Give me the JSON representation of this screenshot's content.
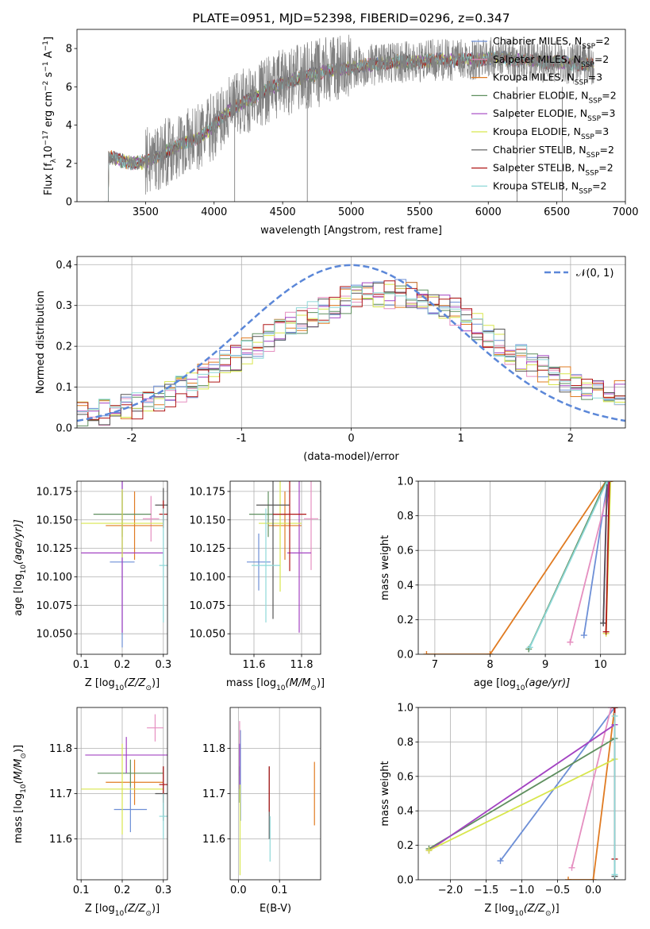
{
  "chart_data": [
    {
      "id": "spectrum",
      "type": "line",
      "title": "PLATE=0951, MJD=52398, FIBERID=0296, z=0.347",
      "xlabel": "wavelength [Angstrom, rest frame]",
      "ylabel_parts": [
        "Flux [f",
        "λ",
        "10",
        "−17",
        " erg cm",
        "−2",
        " s",
        "−1",
        " A",
        "−1",
        "]"
      ],
      "xlim": [
        3000,
        7000
      ],
      "ylim": [
        0,
        9
      ],
      "xticks": [
        3500,
        4000,
        4500,
        5000,
        5500,
        6000,
        6500,
        7000
      ],
      "yticks": [
        0,
        2,
        4,
        6,
        8
      ],
      "grid": false,
      "legend_position": "top-right",
      "continuum": {
        "x": [
          3200,
          3300,
          3400,
          3500,
          3600,
          3700,
          3800,
          3900,
          4000,
          4100,
          4200,
          4300,
          4400,
          4500,
          4600,
          4700,
          4800,
          4900,
          5000,
          5100,
          5200,
          5300,
          5400,
          5500,
          5600,
          5700,
          5800,
          5900,
          6000,
          6100,
          6200,
          6300,
          6400,
          6500,
          6600,
          6700,
          6770
        ],
        "y": [
          2.4,
          2.2,
          2.0,
          2.1,
          2.4,
          2.8,
          3.1,
          3.4,
          4.0,
          4.7,
          5.1,
          5.5,
          5.9,
          6.2,
          6.4,
          6.6,
          6.8,
          6.9,
          7.0,
          7.1,
          7.2,
          7.3,
          7.3,
          7.3,
          7.4,
          7.4,
          7.4,
          7.4,
          7.5,
          7.5,
          7.4,
          7.4,
          7.3,
          7.3,
          7.2,
          7.2,
          7.2
        ]
      },
      "series": [
        {
          "name": "Chabrier MILES, N",
          "sub": "SSP",
          "suffix": "=2",
          "color": "#6d8fd6"
        },
        {
          "name": "Salpeter MILES, N",
          "sub": "SSP",
          "suffix": "=2",
          "color": "#e58fc0"
        },
        {
          "name": "Kroupa MILES, N",
          "sub": "SSP",
          "suffix": "=3",
          "color": "#e07b22"
        },
        {
          "name": "Chabrier ELODIE, N",
          "sub": "SSP",
          "suffix": "=2",
          "color": "#5f8f5f"
        },
        {
          "name": "Salpeter ELODIE, N",
          "sub": "SSP",
          "suffix": "=3",
          "color": "#a343c2"
        },
        {
          "name": "Kroupa ELODIE, N",
          "sub": "SSP",
          "suffix": "=3",
          "color": "#d8e64d"
        },
        {
          "name": "Chabrier STELIB, N",
          "sub": "SSP",
          "suffix": "=2",
          "color": "#555555"
        },
        {
          "name": "Salpeter STELIB, N",
          "sub": "SSP",
          "suffix": "=2",
          "color": "#b01717"
        },
        {
          "name": "Kroupa STELIB, N",
          "sub": "SSP",
          "suffix": "=2",
          "color": "#8ed8d8"
        }
      ],
      "data_color": "#808080"
    },
    {
      "id": "residuals",
      "type": "line",
      "xlabel": "(data-model)/error",
      "ylabel": "Normed distribution",
      "xlim": [
        -2.5,
        2.5
      ],
      "ylim": [
        0,
        0.42
      ],
      "xticks": [
        -2,
        -1,
        0,
        1,
        2
      ],
      "yticks": [
        0.0,
        0.1,
        0.2,
        0.3,
        0.4
      ],
      "ytick_labels": [
        "0.0",
        "0.1",
        "0.2",
        "0.3",
        "0.4"
      ],
      "grid": true,
      "legend_position": "top-right",
      "gaussian_label": "𝒩(0, 1)",
      "gaussian_color": "#5b87d8",
      "hist_envelope": {
        "x": [
          -2.5,
          -2.0,
          -1.5,
          -1.0,
          -0.5,
          0.0,
          0.5,
          1.0,
          1.5,
          2.0,
          2.5
        ],
        "y": [
          0.03,
          0.05,
          0.1,
          0.18,
          0.26,
          0.32,
          0.33,
          0.28,
          0.18,
          0.11,
          0.08
        ]
      }
    },
    {
      "id": "age-vs-Z",
      "type": "scatter",
      "xlabel_parts": [
        "Z [log",
        "10",
        "(Z/Z",
        "⊙",
        ")]"
      ],
      "ylabel_parts": [
        "age  [log",
        "10",
        "(age/yr)]"
      ],
      "xlim": [
        0.09,
        0.31
      ],
      "ylim": [
        10.032,
        10.184
      ],
      "xticks": [
        0.1,
        0.2,
        0.3
      ],
      "xtick_labels": [
        "0.1",
        "0.2",
        "0.3"
      ],
      "yticks": [
        10.05,
        10.075,
        10.1,
        10.125,
        10.15,
        10.175
      ],
      "ytick_labels": [
        "10.050",
        "10.075",
        "10.100",
        "10.125",
        "10.150",
        "10.175"
      ],
      "grid": true,
      "points": [
        {
          "x": 0.2,
          "y": 10.113,
          "xerr": 0.03,
          "yerr": 0.075,
          "color": "#6d8fd6"
        },
        {
          "x": 0.27,
          "y": 10.151,
          "xerr": 0.02,
          "yerr": 0.02,
          "color": "#e58fc0"
        },
        {
          "x": 0.23,
          "y": 10.145,
          "xerr": 0.07,
          "yerr": 0.03,
          "color": "#e07b22"
        },
        {
          "x": 0.2,
          "y": 10.155,
          "xerr": 0.07,
          "yerr": 0.02,
          "color": "#5f8f5f"
        },
        {
          "x": 0.2,
          "y": 10.121,
          "xerr": 0.1,
          "yerr": 0.07,
          "color": "#a343c2"
        },
        {
          "x": 0.2,
          "y": 10.147,
          "xerr": 0.1,
          "yerr": 0.03,
          "color": "#d8e64d"
        },
        {
          "x": 0.3,
          "y": 10.163,
          "xerr": 0.02,
          "yerr": 0.015,
          "color": "#555555"
        },
        {
          "x": 0.3,
          "y": 10.155,
          "xerr": 0.01,
          "yerr": 0.012,
          "color": "#b01717"
        },
        {
          "x": 0.3,
          "y": 10.11,
          "xerr": 0.01,
          "yerr": 0.05,
          "color": "#8ed8d8"
        }
      ]
    },
    {
      "id": "age-vs-mass",
      "type": "scatter",
      "xlabel_parts": [
        "mass [log",
        "10",
        "(M/M",
        "⊙",
        ")]"
      ],
      "xlim": [
        11.5,
        11.88
      ],
      "ylim": [
        10.032,
        10.184
      ],
      "xticks": [
        11.6,
        11.8
      ],
      "xtick_labels": [
        "11.6",
        "11.8"
      ],
      "yticks": [
        10.05,
        10.075,
        10.1,
        10.125,
        10.15,
        10.175
      ],
      "ytick_labels": [
        "10.050",
        "10.075",
        "10.100",
        "10.125",
        "10.150",
        "10.175"
      ],
      "grid": true,
      "points": [
        {
          "x": 11.62,
          "y": 10.113,
          "xerr": 0.05,
          "yerr": 0.025,
          "color": "#6d8fd6"
        },
        {
          "x": 11.84,
          "y": 10.151,
          "xerr": 0.03,
          "yerr": 0.045,
          "color": "#e58fc0"
        },
        {
          "x": 11.73,
          "y": 10.145,
          "xerr": 0.07,
          "yerr": 0.03,
          "color": "#e07b22"
        },
        {
          "x": 11.66,
          "y": 10.155,
          "xerr": 0.08,
          "yerr": 0.02,
          "color": "#5f8f5f"
        },
        {
          "x": 11.79,
          "y": 10.121,
          "xerr": 0.05,
          "yerr": 0.07,
          "color": "#a343c2"
        },
        {
          "x": 11.71,
          "y": 10.147,
          "xerr": 0.09,
          "yerr": 0.06,
          "color": "#d8e64d"
        },
        {
          "x": 11.68,
          "y": 10.163,
          "xerr": 0.07,
          "yerr": 0.1,
          "color": "#555555"
        },
        {
          "x": 11.75,
          "y": 10.155,
          "xerr": 0.07,
          "yerr": 0.05,
          "color": "#b01717"
        },
        {
          "x": 11.65,
          "y": 10.11,
          "xerr": 0.06,
          "yerr": 0.05,
          "color": "#8ed8d8"
        }
      ]
    },
    {
      "id": "cumulative-age",
      "type": "line",
      "xlabel_parts": [
        "age  [log",
        "10",
        "(age/yr)]"
      ],
      "ylabel": "mass weight",
      "xlim": [
        6.7,
        10.45
      ],
      "ylim": [
        0,
        1
      ],
      "xticks": [
        7,
        8,
        9,
        10
      ],
      "yticks": [
        0,
        0.2,
        0.4,
        0.6,
        0.8,
        1.0
      ],
      "ytick_labels": [
        "0.0",
        "0.2",
        "0.4",
        "0.6",
        "0.8",
        "1.0"
      ],
      "grid": true,
      "series": [
        {
          "color": "#6d8fd6",
          "x": [
            9.7,
            10.13
          ],
          "y": [
            0.11,
            1.0
          ]
        },
        {
          "color": "#e58fc0",
          "x": [
            9.45,
            10.18
          ],
          "y": [
            0.07,
            1.0
          ]
        },
        {
          "color": "#e07b22",
          "x": [
            6.85,
            8.0,
            10.1
          ],
          "y": [
            0.0,
            0.0,
            1.0
          ]
        },
        {
          "color": "#5f8f5f",
          "x": [
            8.7,
            10.1
          ],
          "y": [
            0.03,
            1.0
          ]
        },
        {
          "color": "#a343c2",
          "x": [
            10.05,
            10.1,
            10.15
          ],
          "y": [
            0.18,
            0.8,
            1.0
          ]
        },
        {
          "color": "#d8e64d",
          "x": [
            10.1,
            10.18
          ],
          "y": [
            0.12,
            1.0
          ]
        },
        {
          "color": "#555555",
          "x": [
            10.05,
            10.12
          ],
          "y": [
            0.18,
            1.0
          ]
        },
        {
          "color": "#b01717",
          "x": [
            10.1,
            10.16
          ],
          "y": [
            0.13,
            1.0
          ]
        },
        {
          "color": "#8ed8d8",
          "x": [
            8.72,
            10.12
          ],
          "y": [
            0.04,
            1.0
          ]
        }
      ]
    },
    {
      "id": "mass-vs-Z",
      "type": "scatter",
      "xlabel_parts": [
        "Z [log",
        "10",
        "(Z/Z",
        "⊙",
        ")]"
      ],
      "ylabel_parts": [
        "mass [log",
        "10",
        "(M/M",
        "⊙",
        ")]"
      ],
      "xlim": [
        0.09,
        0.31
      ],
      "ylim": [
        11.51,
        11.89
      ],
      "xticks": [
        0.1,
        0.2,
        0.3
      ],
      "xtick_labels": [
        "0.1",
        "0.2",
        "0.3"
      ],
      "yticks": [
        11.6,
        11.7,
        11.8
      ],
      "ytick_labels": [
        "11.6",
        "11.7",
        "11.8"
      ],
      "grid": true,
      "points": [
        {
          "x": 0.22,
          "y": 11.665,
          "xerr": 0.04,
          "yerr": 0.05,
          "color": "#6d8fd6"
        },
        {
          "x": 0.28,
          "y": 11.845,
          "xerr": 0.02,
          "yerr": 0.03,
          "color": "#e58fc0"
        },
        {
          "x": 0.23,
          "y": 11.725,
          "xerr": 0.07,
          "yerr": 0.05,
          "color": "#e07b22"
        },
        {
          "x": 0.22,
          "y": 11.745,
          "xerr": 0.08,
          "yerr": 0.03,
          "color": "#5f8f5f"
        },
        {
          "x": 0.21,
          "y": 11.785,
          "xerr": 0.1,
          "yerr": 0.04,
          "color": "#a343c2"
        },
        {
          "x": 0.2,
          "y": 11.71,
          "xerr": 0.1,
          "yerr": 0.1,
          "color": "#d8e64d"
        },
        {
          "x": 0.3,
          "y": 11.7,
          "xerr": 0.02,
          "yerr": 0.06,
          "color": "#555555"
        },
        {
          "x": 0.3,
          "y": 11.72,
          "xerr": 0.01,
          "yerr": 0.04,
          "color": "#b01717"
        },
        {
          "x": 0.3,
          "y": 11.65,
          "xerr": 0.01,
          "yerr": 0.05,
          "color": "#8ed8d8"
        }
      ]
    },
    {
      "id": "mass-vs-ebv",
      "type": "scatter",
      "xlabel": "E(B-V)",
      "xlim": [
        -0.02,
        0.2
      ],
      "ylim": [
        11.51,
        11.89
      ],
      "xticks": [
        0.0,
        0.1
      ],
      "xtick_labels": [
        "0.0",
        "0.1"
      ],
      "yticks": [
        11.6,
        11.7,
        11.8
      ],
      "ytick_labels": [
        "11.6",
        "11.7",
        "11.8"
      ],
      "grid": true,
      "points": [
        {
          "x": 0.005,
          "y": 11.74,
          "xerr": 0,
          "yerr": 0.1,
          "color": "#6d8fd6"
        },
        {
          "x": 0.003,
          "y": 11.8,
          "xerr": 0,
          "yerr": 0.06,
          "color": "#e58fc0"
        },
        {
          "x": 0.185,
          "y": 11.7,
          "xerr": 0,
          "yerr": 0.07,
          "color": "#e07b22"
        },
        {
          "x": 0.003,
          "y": 11.72,
          "xerr": 0,
          "yerr": 0.04,
          "color": "#5f8f5f"
        },
        {
          "x": 0.003,
          "y": 11.76,
          "xerr": 0,
          "yerr": 0.05,
          "color": "#a343c2"
        },
        {
          "x": 0.004,
          "y": 11.62,
          "xerr": 0,
          "yerr": 0.1,
          "color": "#d8e64d"
        },
        {
          "x": 0.075,
          "y": 11.68,
          "xerr": 0,
          "yerr": 0.08,
          "color": "#555555"
        },
        {
          "x": 0.075,
          "y": 11.71,
          "xerr": 0,
          "yerr": 0.05,
          "color": "#b01717"
        },
        {
          "x": 0.077,
          "y": 11.6,
          "xerr": 0,
          "yerr": 0.05,
          "color": "#8ed8d8"
        }
      ]
    },
    {
      "id": "cumulative-Z",
      "type": "line",
      "xlabel_parts": [
        "Z [log",
        "10",
        "(Z/Z",
        "⊙",
        ")]"
      ],
      "ylabel": "mass weight",
      "xlim": [
        -2.45,
        0.45
      ],
      "ylim": [
        0,
        1
      ],
      "xticks": [
        -2.0,
        -1.5,
        -1.0,
        -0.5,
        0.0
      ],
      "xtick_labels": [
        "−2.0",
        "−1.5",
        "−1.0",
        "−0.5",
        "0.0"
      ],
      "yticks": [
        0,
        0.2,
        0.4,
        0.6,
        0.8,
        1.0
      ],
      "ytick_labels": [
        "0.0",
        "0.2",
        "0.4",
        "0.6",
        "0.8",
        "1.0"
      ],
      "grid": true,
      "series": [
        {
          "color": "#6d8fd6",
          "x": [
            -1.3,
            0.3
          ],
          "y": [
            0.11,
            1.0
          ]
        },
        {
          "color": "#e58fc0",
          "x": [
            -0.3,
            0.25
          ],
          "y": [
            0.07,
            1.0
          ]
        },
        {
          "color": "#e07b22",
          "x": [
            -0.35,
            0.0,
            0.3
          ],
          "y": [
            0.0,
            0.0,
            1.0
          ]
        },
        {
          "color": "#5f8f5f",
          "x": [
            -2.3,
            0.3
          ],
          "y": [
            0.18,
            0.82
          ]
        },
        {
          "color": "#a343c2",
          "x": [
            -2.3,
            0.3
          ],
          "y": [
            0.17,
            0.9
          ]
        },
        {
          "color": "#d8e64d",
          "x": [
            -2.3,
            0.3
          ],
          "y": [
            0.17,
            0.7
          ]
        },
        {
          "color": "#555555",
          "x": [
            0.3,
            0.3
          ],
          "y": [
            0.02,
            1.0
          ]
        },
        {
          "color": "#b01717",
          "x": [
            0.3,
            0.3
          ],
          "y": [
            0.12,
            1.0
          ]
        },
        {
          "color": "#8ed8d8",
          "x": [
            0.3,
            0.3
          ],
          "y": [
            0.03,
            0.95
          ]
        }
      ]
    }
  ]
}
